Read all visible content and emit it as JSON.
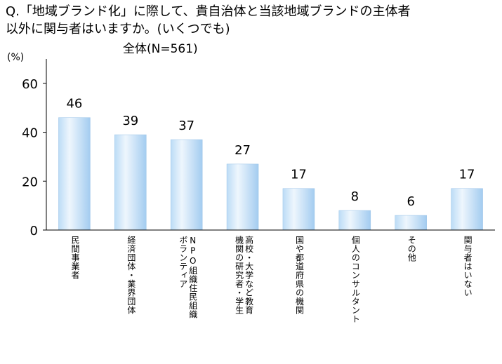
{
  "question": {
    "line1": "Q.「地域ブランド化」に際して、貴自治体と当該地域ブランドの主体者",
    "line2": "以外に関与者はいますか。(いくつでも)"
  },
  "subtitle": "全体(N=561)",
  "unit": "(%)",
  "colors": {
    "bar_light": "#eaf4fc",
    "bar_mid": "#a9d0f2",
    "axis": "#000000"
  },
  "chart_data": {
    "type": "bar",
    "title": "全体(N=561)",
    "ylabel": "(%)",
    "xlabel": "",
    "ylim": [
      0,
      70
    ],
    "yticks": [
      0,
      20,
      40,
      60
    ],
    "grid": false,
    "categories": [
      "民間事業者",
      "経済団体・業界団体",
      "NPO組織住民組織ボランティア",
      "高校・大学など教育機関の研究者・学生",
      "国や都道府県の機関",
      "個人のコンサルタント",
      "その他",
      "関与者はいない"
    ],
    "category_lines": [
      [
        "民間事業者"
      ],
      [
        "経済団体・業界団体"
      ],
      [
        "NPO組織住民組織",
        "ボランティア"
      ],
      [
        "高校・大学など教育",
        "機関の研究者・学生"
      ],
      [
        "国や都道府県の機関"
      ],
      [
        "個人のコンサルタント"
      ],
      [
        "その他"
      ],
      [
        "関与者はいない"
      ]
    ],
    "values": [
      46,
      39,
      37,
      27,
      17,
      8,
      6,
      17
    ]
  }
}
